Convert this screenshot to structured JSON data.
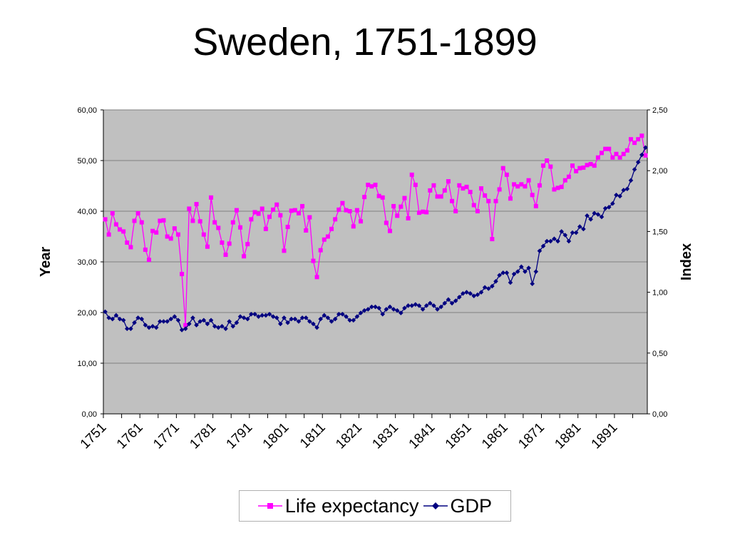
{
  "title": "Sweden, 1751-1899",
  "chart_data": {
    "type": "line",
    "title": "Sweden, 1751-1899",
    "ylabel_left": "Year",
    "ylabel_right": "Index",
    "ylim_left": [
      0,
      60
    ],
    "ylim_right": [
      0,
      2.5
    ],
    "yticks_left": [
      "0,00",
      "10,00",
      "20,00",
      "30,00",
      "40,00",
      "50,00",
      "60,00"
    ],
    "yticks_right": [
      "0,00",
      "0,50",
      "1,00",
      "1,50",
      "2,00",
      "2,50"
    ],
    "xlim": [
      1751,
      1899
    ],
    "xtick_labels": [
      "1751",
      "1761",
      "1771",
      "1781",
      "1791",
      "1801",
      "1811",
      "1821",
      "1831",
      "1841",
      "1851",
      "1861",
      "1871",
      "1881",
      "1891"
    ],
    "grid": true,
    "legend_position": "bottom",
    "series": [
      {
        "name": "Life expectancy",
        "axis": "left",
        "color": "#ff00ff",
        "marker": "square",
        "x_start": 1751,
        "values": [
          38.4,
          35.4,
          39.6,
          37.4,
          36.4,
          36.0,
          33.8,
          32.9,
          38.1,
          39.6,
          37.8,
          32.4,
          30.4,
          36.1,
          35.8,
          38.1,
          38.2,
          35.0,
          34.6,
          36.6,
          35.4,
          27.6,
          17.5,
          40.5,
          38.1,
          41.4,
          38.0,
          35.4,
          33.0,
          42.7,
          37.8,
          36.7,
          33.8,
          31.4,
          33.6,
          37.8,
          40.2,
          36.8,
          31.1,
          33.5,
          38.4,
          39.8,
          39.5,
          40.5,
          36.5,
          38.9,
          40.3,
          41.3,
          39.2,
          32.2,
          36.9,
          40.1,
          40.2,
          39.6,
          41.0,
          36.2,
          38.8,
          30.2,
          27.0,
          32.3,
          34.4,
          35.0,
          36.5,
          38.4,
          40.3,
          41.6,
          40.2,
          40.0,
          37.0,
          40.2,
          38.0,
          42.8,
          45.2,
          44.9,
          45.2,
          43.0,
          42.7,
          37.7,
          36.1,
          41.0,
          39.1,
          40.9,
          42.6,
          38.6,
          47.2,
          45.2,
          39.7,
          39.9,
          39.8,
          44.1,
          45.1,
          42.9,
          42.9,
          44.1,
          45.9,
          42.0,
          40.0,
          45.1,
          44.5,
          44.8,
          43.8,
          41.2,
          40.0,
          44.5,
          43.1,
          42.0,
          34.5,
          42.0,
          44.3,
          48.5,
          47.2,
          42.5,
          45.3,
          44.9,
          45.3,
          44.9,
          46.1,
          43.2,
          41.0,
          45.1,
          49.0,
          50.0,
          48.8,
          44.3,
          44.6,
          44.8,
          46.1,
          46.8,
          49.0,
          47.9,
          48.5,
          48.6,
          49.1,
          49.3,
          49.0,
          50.6,
          51.5,
          52.3,
          52.3,
          50.6,
          51.3,
          50.6,
          51.3,
          52.0,
          54.2,
          53.5,
          54.2,
          54.9,
          51.0
        ]
      },
      {
        "name": "GDP",
        "axis": "right",
        "color": "#000080",
        "marker": "diamond",
        "x_start": 1751,
        "values": [
          0.84,
          0.79,
          0.78,
          0.81,
          0.78,
          0.77,
          0.7,
          0.7,
          0.75,
          0.79,
          0.78,
          0.73,
          0.71,
          0.72,
          0.71,
          0.76,
          0.76,
          0.76,
          0.78,
          0.8,
          0.77,
          0.69,
          0.7,
          0.74,
          0.79,
          0.73,
          0.76,
          0.77,
          0.74,
          0.77,
          0.72,
          0.71,
          0.72,
          0.7,
          0.76,
          0.72,
          0.75,
          0.8,
          0.79,
          0.78,
          0.82,
          0.82,
          0.8,
          0.81,
          0.81,
          0.82,
          0.8,
          0.79,
          0.74,
          0.79,
          0.75,
          0.78,
          0.78,
          0.76,
          0.79,
          0.79,
          0.76,
          0.74,
          0.71,
          0.78,
          0.81,
          0.79,
          0.76,
          0.78,
          0.82,
          0.82,
          0.8,
          0.77,
          0.77,
          0.8,
          0.83,
          0.85,
          0.86,
          0.88,
          0.88,
          0.87,
          0.82,
          0.86,
          0.88,
          0.86,
          0.85,
          0.83,
          0.87,
          0.89,
          0.89,
          0.9,
          0.89,
          0.86,
          0.89,
          0.91,
          0.89,
          0.86,
          0.88,
          0.91,
          0.94,
          0.91,
          0.93,
          0.96,
          0.99,
          1.0,
          0.99,
          0.97,
          0.98,
          1.0,
          1.04,
          1.03,
          1.05,
          1.09,
          1.14,
          1.16,
          1.16,
          1.08,
          1.15,
          1.17,
          1.21,
          1.17,
          1.2,
          1.07,
          1.17,
          1.34,
          1.38,
          1.42,
          1.42,
          1.44,
          1.42,
          1.5,
          1.47,
          1.42,
          1.49,
          1.49,
          1.54,
          1.52,
          1.63,
          1.6,
          1.65,
          1.64,
          1.62,
          1.69,
          1.7,
          1.73,
          1.8,
          1.79,
          1.84,
          1.85,
          1.92,
          2.01,
          2.07,
          2.13,
          2.19
        ]
      }
    ]
  }
}
